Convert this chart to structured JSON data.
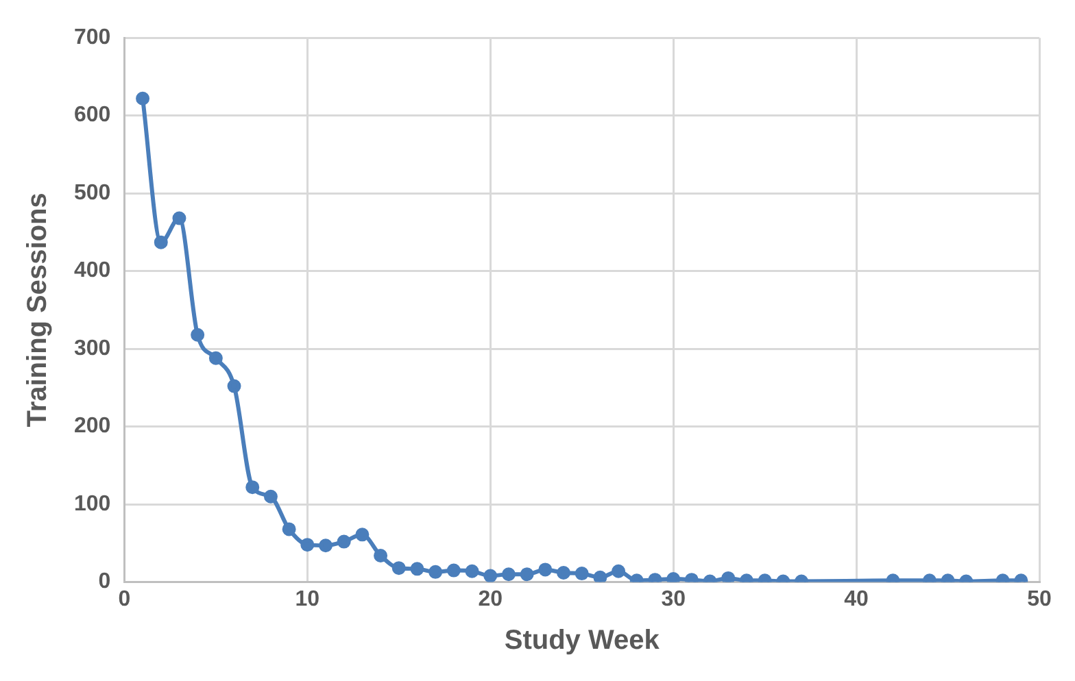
{
  "chart_data": {
    "type": "line",
    "xlabel": "Study Week",
    "ylabel": "Training Sessions",
    "x": [
      1,
      2,
      3,
      4,
      5,
      6,
      7,
      8,
      9,
      10,
      11,
      12,
      13,
      14,
      15,
      16,
      17,
      18,
      19,
      20,
      21,
      22,
      23,
      24,
      25,
      26,
      27,
      28,
      29,
      30,
      31,
      32,
      33,
      34,
      35,
      36,
      37,
      42,
      44,
      45,
      46,
      48,
      49
    ],
    "series": [
      {
        "color": "#4a7ebb",
        "values": [
          622,
          437,
          468,
          318,
          288,
          252,
          122,
          110,
          68,
          48,
          47,
          52,
          61,
          34,
          18,
          17,
          13,
          15,
          14,
          8,
          10,
          10,
          16,
          12,
          11,
          6,
          14,
          2,
          3,
          4,
          3,
          1,
          5,
          2,
          2,
          1,
          1,
          2,
          2,
          2,
          1,
          2,
          2
        ]
      }
    ],
    "xlim": [
      0,
      50
    ],
    "xticks": [
      0,
      10,
      20,
      30,
      40,
      50
    ],
    "ylim": [
      0,
      700
    ],
    "yticks": [
      0,
      100,
      200,
      300,
      400,
      500,
      600,
      700
    ],
    "grid": true,
    "marker": "circle",
    "line_style": "solid",
    "legend": false
  }
}
